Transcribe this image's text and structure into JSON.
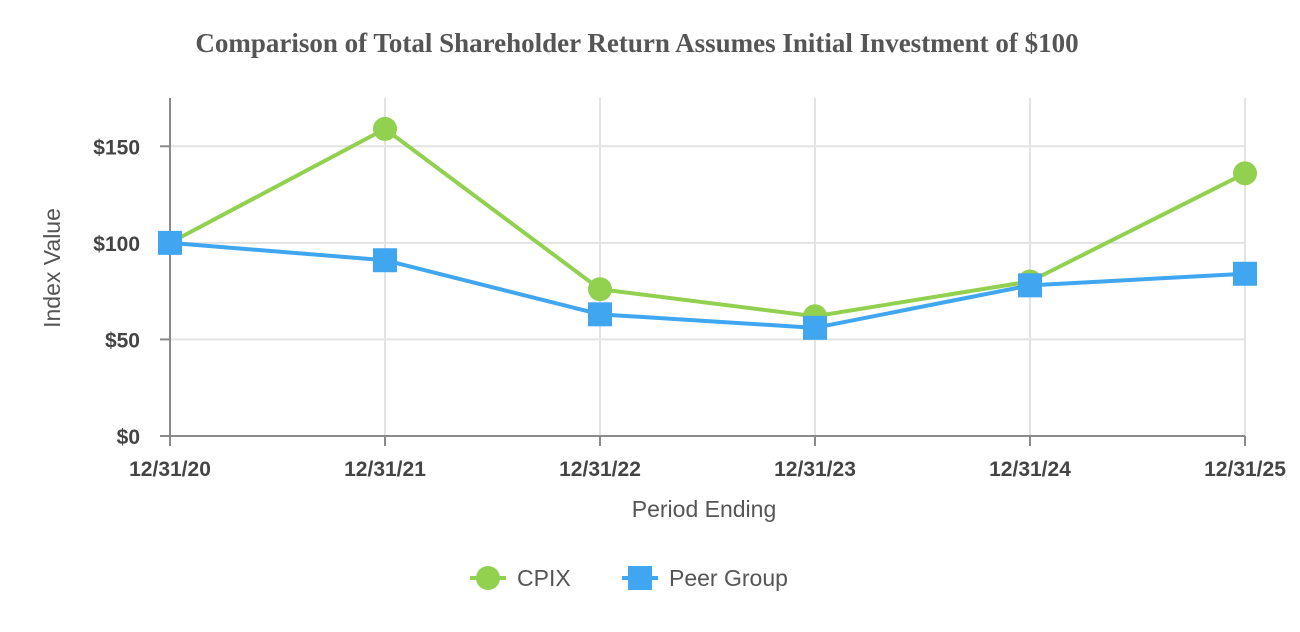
{
  "chart_data": {
    "type": "line",
    "title": "Comparison of Total Shareholder Return Assumes Initial Investment of $100",
    "xlabel": "Period Ending",
    "ylabel": "Index Value",
    "categories": [
      "12/31/20",
      "12/31/21",
      "12/31/22",
      "12/31/23",
      "12/31/24",
      "12/31/25"
    ],
    "ylim": [
      0,
      175
    ],
    "yticks": [
      0,
      50,
      100,
      150
    ],
    "ytick_labels": [
      "$0",
      "$50",
      "$100",
      "$150"
    ],
    "grid": true,
    "legend_position": "bottom-center",
    "series": [
      {
        "name": "CPIX",
        "marker": "circle",
        "color": "#92d050",
        "values": [
          100,
          159,
          76,
          62,
          80,
          136
        ]
      },
      {
        "name": "Peer Group",
        "marker": "square",
        "color": "#41a6f0",
        "values": [
          100,
          91,
          63,
          56,
          78,
          84
        ]
      }
    ]
  }
}
